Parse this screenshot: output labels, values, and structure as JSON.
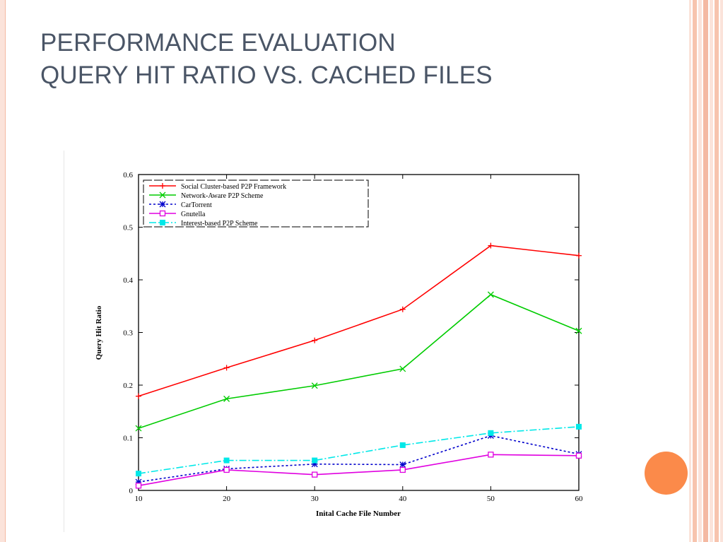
{
  "slide": {
    "title_line1": "PERFORMANCE EVALUATION",
    "title_line2": "QUERY HIT RATIO VS. CACHED FILES"
  },
  "colors": {
    "title": "#4a5566",
    "accent_orange": "#fb8a4a",
    "stripe_light": "#fbe3da",
    "stripe_mid": "#f4b9a2"
  },
  "chart_data": {
    "type": "line",
    "title": "",
    "xlabel": "Inital Cache File Number",
    "ylabel": "Query Hit Ratio",
    "x": [
      10,
      20,
      30,
      40,
      50,
      60
    ],
    "xlim": [
      10,
      60
    ],
    "ylim": [
      0,
      0.6
    ],
    "x_ticks": [
      10,
      20,
      30,
      40,
      50,
      60
    ],
    "y_ticks": [
      0,
      0.1,
      0.2,
      0.3,
      0.4,
      0.5,
      0.6
    ],
    "y_tick_labels": [
      "0",
      "0.1",
      "0.2",
      "0.3",
      "0.4",
      "0.5",
      "0.6"
    ],
    "legend_position": "top-left",
    "series": [
      {
        "name": "Social Cluster-based P2P Framework",
        "color": "#ff0000",
        "dash": "solid",
        "marker": "plus",
        "values": [
          0.179,
          0.233,
          0.285,
          0.344,
          0.465,
          0.446
        ]
      },
      {
        "name": "Network-Aware P2P Scheme",
        "color": "#00cc00",
        "dash": "solid",
        "marker": "x",
        "values": [
          0.118,
          0.174,
          0.199,
          0.231,
          0.372,
          0.303
        ]
      },
      {
        "name": "CarTorrent",
        "color": "#0000cc",
        "dash": "dotted",
        "marker": "star",
        "values": [
          0.016,
          0.041,
          0.05,
          0.049,
          0.104,
          0.069
        ]
      },
      {
        "name": "Gnutella",
        "color": "#e000e0",
        "dash": "solid",
        "marker": "square",
        "values": [
          0.009,
          0.039,
          0.03,
          0.039,
          0.068,
          0.066
        ]
      },
      {
        "name": "Interest-based P2P Scheme",
        "color": "#00e8e8",
        "dash": "dashdot",
        "marker": "filled-square",
        "values": [
          0.032,
          0.057,
          0.057,
          0.086,
          0.109,
          0.121
        ]
      }
    ]
  }
}
